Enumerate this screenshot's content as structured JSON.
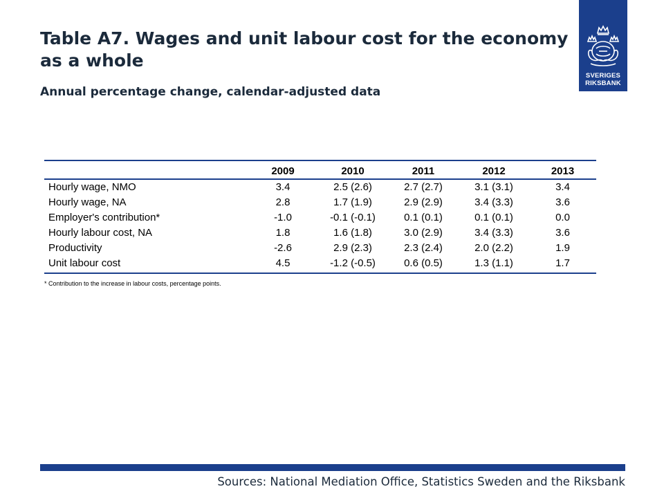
{
  "title": "Table A7. Wages and unit labour cost for the economy as a whole",
  "subtitle": "Annual percentage change, calendar-adjusted data",
  "logo": {
    "line1": "SVERIGES",
    "line2": "RIKSBANK"
  },
  "table": {
    "columns": [
      "",
      "2009",
      "2010",
      "2011",
      "2012",
      "2013"
    ],
    "rows": [
      [
        "Hourly wage, NMO",
        "3.4",
        "2.5 (2.6)",
        "2.7 (2.7)",
        "3.1 (3.1)",
        "3.4"
      ],
      [
        "Hourly wage, NA",
        "2.8",
        "1.7 (1.9)",
        "2.9 (2.9)",
        "3.4 (3.3)",
        "3.6"
      ],
      [
        "Employer's contribution*",
        "-1.0",
        "-0.1 (-0.1)",
        "0.1 (0.1)",
        "0.1 (0.1)",
        "0.0"
      ],
      [
        "Hourly labour cost, NA",
        "1.8",
        "1.6 (1.8)",
        "3.0 (2.9)",
        "3.4 (3.3)",
        "3.6"
      ],
      [
        "Productivity",
        "-2.6",
        "2.9 (2.3)",
        "2.3 (2.4)",
        "2.0 (2.2)",
        "1.9"
      ],
      [
        "Unit labour cost",
        "4.5",
        "-1.2 (-0.5)",
        "0.6 (0.5)",
        "1.3 (1.1)",
        "1.7"
      ]
    ]
  },
  "footnote": "* Contribution to the increase in labour costs, percentage points.",
  "sources": "Sources: National Mediation Office, Statistics Sweden and the Riksbank",
  "colors": {
    "brand": "#1b3f8c",
    "title": "#1b2a3b"
  }
}
